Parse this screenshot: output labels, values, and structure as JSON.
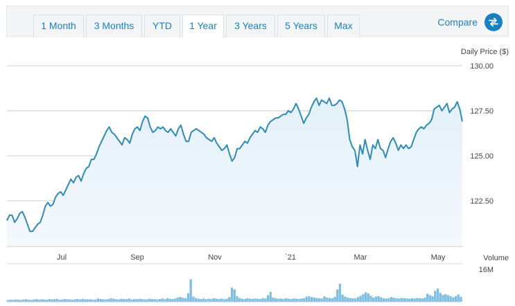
{
  "tabs": [
    {
      "label": "1 Month",
      "active": false
    },
    {
      "label": "3 Months",
      "active": false
    },
    {
      "label": "YTD",
      "active": false
    },
    {
      "label": "1 Year",
      "active": true
    },
    {
      "label": "3 Years",
      "active": false
    },
    {
      "label": "5 Years",
      "active": false
    },
    {
      "label": "Max",
      "active": false
    }
  ],
  "compare": {
    "label": "Compare",
    "icon": "swap-arrows-icon"
  },
  "colors": {
    "accent": "#1a7fc1",
    "line": "#2e8ab5",
    "area": "#e3f0fa",
    "volume": "#7fbde3"
  },
  "chart_data": {
    "type": "line",
    "ylabel": "Daily Price ($)",
    "ylim": [
      120.0,
      130.0
    ],
    "yticks": [
      "130.00",
      "127.50",
      "125.00",
      "122.50"
    ],
    "xticks": [
      "Jul",
      "Sep",
      "Nov",
      "`21",
      "Mar",
      "May"
    ],
    "series": [
      {
        "values": [
          121.4,
          121.7,
          121.7,
          121.3,
          121.5,
          121.8,
          121.9,
          121.6,
          121.2,
          120.8,
          120.8,
          121.0,
          121.2,
          121.3,
          121.7,
          122.2,
          122.4,
          122.2,
          122.3,
          122.7,
          122.9,
          123.0,
          122.8,
          123.1,
          123.4,
          123.7,
          123.5,
          123.8,
          123.9,
          123.6,
          124.0,
          124.3,
          124.4,
          124.8,
          124.8,
          125.1,
          125.5,
          125.8,
          126.1,
          126.4,
          126.6,
          126.3,
          126.2,
          126.0,
          125.8,
          125.6,
          126.0,
          125.9,
          125.7,
          126.2,
          126.5,
          126.6,
          126.4,
          126.9,
          127.2,
          127.1,
          126.6,
          126.3,
          126.4,
          126.6,
          126.5,
          126.6,
          126.4,
          126.3,
          126.5,
          126.3,
          126.1,
          126.5,
          126.7,
          126.2,
          125.8,
          125.8,
          126.3,
          126.4,
          126.5,
          126.4,
          126.3,
          126.2,
          126.0,
          125.9,
          125.8,
          126.0,
          125.7,
          125.5,
          125.3,
          125.4,
          125.6,
          125.1,
          124.7,
          124.9,
          125.4,
          125.4,
          125.6,
          125.8,
          125.7,
          126.0,
          126.2,
          126.4,
          126.3,
          126.6,
          126.5,
          126.3,
          126.7,
          126.9,
          127.0,
          127.1,
          127.1,
          127.2,
          127.3,
          127.3,
          127.5,
          127.4,
          127.6,
          127.9,
          127.6,
          127.2,
          126.8,
          127.1,
          127.3,
          127.7,
          128.0,
          128.2,
          127.8,
          128.1,
          128.0,
          127.9,
          128.2,
          127.8,
          127.8,
          127.9,
          128.1,
          128.0,
          127.6,
          127.0,
          125.9,
          125.5,
          125.3,
          124.4,
          125.6,
          125.1,
          125.9,
          125.3,
          124.8,
          125.6,
          125.4,
          125.9,
          125.4,
          125.3,
          124.9,
          125.4,
          125.8,
          126.0,
          125.7,
          125.3,
          125.6,
          125.4,
          125.6,
          125.4,
          125.5,
          125.9,
          126.3,
          126.5,
          126.6,
          126.5,
          126.7,
          126.8,
          127.0,
          127.6,
          127.7,
          127.8,
          127.5,
          127.7,
          127.9,
          127.4,
          127.6,
          127.7,
          128.0,
          127.6,
          126.9
        ]
      }
    ],
    "volume_label": "Volume",
    "volume_max_label": "16M",
    "volume_ylim": [
      0,
      16
    ],
    "volume": [
      0.8,
      0.9,
      0.8,
      1.0,
      0.9,
      0.8,
      1.0,
      1.1,
      0.9,
      0.8,
      1.0,
      1.2,
      0.9,
      1.1,
      1.0,
      0.9,
      1.2,
      1.0,
      1.1,
      1.3,
      0.9,
      1.0,
      1.2,
      1.1,
      1.0,
      0.9,
      1.1,
      1.2,
      1.0,
      1.3,
      1.1,
      1.0,
      1.1,
      0.9,
      1.0,
      1.4,
      1.2,
      1.1,
      1.0,
      1.2,
      1.5,
      1.3,
      1.1,
      1.0,
      1.3,
      1.2,
      1.1,
      1.4,
      1.0,
      1.2,
      1.1,
      1.3,
      1.2,
      1.0,
      1.1,
      1.3,
      1.2,
      1.1,
      1.0,
      1.2,
      1.4,
      1.1,
      1.6,
      1.3,
      1.2,
      1.4,
      1.8,
      2.0,
      1.7,
      1.5,
      3.6,
      9.5,
      2.2,
      1.6,
      1.3,
      1.2,
      1.4,
      1.1,
      1.3,
      1.2,
      1.5,
      1.3,
      1.2,
      1.4,
      1.1,
      1.3,
      2.0,
      6.0,
      5.2,
      2.4,
      1.6,
      1.3,
      1.2,
      1.5,
      1.3,
      1.2,
      1.4,
      1.3,
      1.2,
      1.6,
      1.4,
      2.8,
      4.2,
      1.8,
      1.5,
      1.3,
      1.4,
      1.2,
      1.5,
      1.3,
      1.2,
      1.4,
      1.3,
      1.2,
      1.4,
      1.5,
      2.2,
      2.4,
      2.0,
      1.8,
      1.6,
      1.5,
      1.4,
      2.3,
      1.8,
      1.6,
      1.5,
      2.1,
      5.2,
      7.6,
      3.0,
      2.2,
      1.8,
      1.6,
      1.5,
      1.4,
      2.0,
      2.5,
      3.2,
      4.0,
      3.6,
      2.6,
      1.8,
      2.2,
      2.4,
      1.9,
      1.5,
      1.4,
      1.6,
      2.0,
      1.7,
      1.5,
      1.4,
      1.6,
      1.5,
      1.4,
      1.3,
      1.5,
      1.4,
      1.6,
      1.5,
      1.4,
      1.8,
      3.4,
      2.8,
      2.4,
      4.6,
      5.6,
      3.8,
      2.9,
      3.2,
      2.8,
      2.4,
      1.9,
      2.4,
      3.1,
      2.1
    ]
  }
}
